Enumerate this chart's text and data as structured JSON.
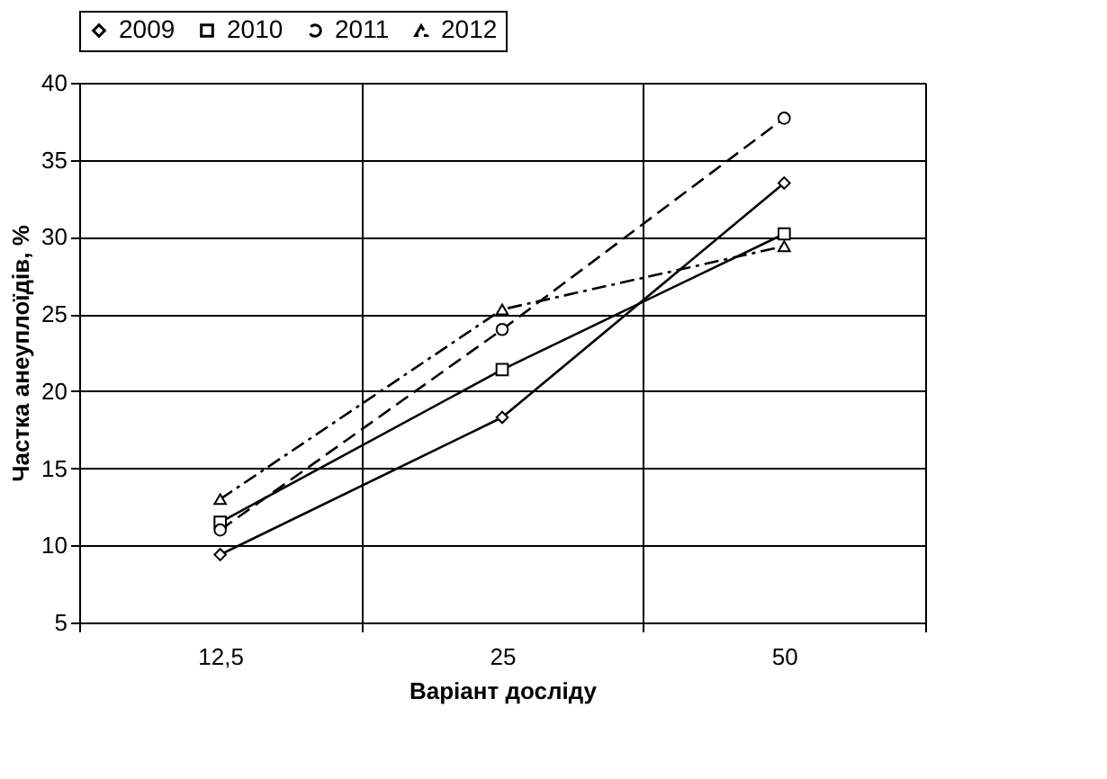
{
  "chart_data": {
    "type": "line",
    "xlabel": "Варіант досліду",
    "ylabel": "Частка анеуплоїдів, %",
    "categories": [
      "12,5",
      "25",
      "50"
    ],
    "series": [
      {
        "name": "2009",
        "color": "#000000",
        "marker": "diamond",
        "line_style": "solid",
        "values": [
          9.4,
          18.3,
          33.5
        ]
      },
      {
        "name": "2010",
        "color": "#000000",
        "marker": "square",
        "line_style": "solid",
        "values": [
          11.5,
          21.4,
          30.2
        ]
      },
      {
        "name": "2011",
        "color": "#000000",
        "marker": "circle",
        "line_style": "dashed",
        "values": [
          11.0,
          24.0,
          37.7
        ]
      },
      {
        "name": "2012",
        "color": "#000000",
        "marker": "triangle",
        "line_style": "dashdot",
        "values": [
          13.0,
          25.3,
          29.4
        ]
      }
    ],
    "ylim": [
      5,
      40
    ],
    "yticks": [
      5,
      10,
      15,
      20,
      25,
      30,
      35,
      40
    ],
    "grid": true,
    "legend": "top"
  }
}
